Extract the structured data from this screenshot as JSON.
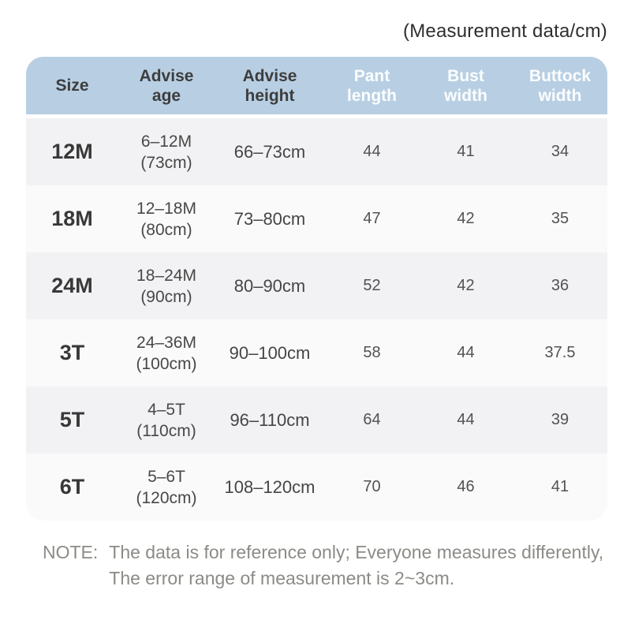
{
  "page": {
    "title": "(Measurement data/cm)"
  },
  "colors": {
    "header_bg": "#b8cfe3",
    "header_text_dark": "#3d3d3d",
    "header_text_light": "#fbfdfe",
    "row_gray": "#f2f2f4",
    "row_light": "#fafafa",
    "note_text": "#8b8b86"
  },
  "table": {
    "columns": [
      {
        "id": "size",
        "line1": "Size",
        "line2": ""
      },
      {
        "id": "advise_age",
        "line1": "Advise",
        "line2": "age"
      },
      {
        "id": "advise_height",
        "line1": "Advise",
        "line2": "height"
      },
      {
        "id": "pant_length",
        "line1": "Pant",
        "line2": "length"
      },
      {
        "id": "bust_width",
        "line1": "Bust",
        "line2": "width"
      },
      {
        "id": "buttock_width",
        "line1": "Buttock",
        "line2": "width"
      }
    ],
    "rows": [
      {
        "size": "12M",
        "age_line1": "6–12M",
        "age_line2": "(73cm)",
        "height": "66–73cm",
        "pant_length": "44",
        "bust_width": "41",
        "buttock_width": "34"
      },
      {
        "size": "18M",
        "age_line1": "12–18M",
        "age_line2": "(80cm)",
        "height": "73–80cm",
        "pant_length": "47",
        "bust_width": "42",
        "buttock_width": "35"
      },
      {
        "size": "24M",
        "age_line1": "18–24M",
        "age_line2": "(90cm)",
        "height": "80–90cm",
        "pant_length": "52",
        "bust_width": "42",
        "buttock_width": "36"
      },
      {
        "size": "3T",
        "age_line1": "24–36M",
        "age_line2": "(100cm)",
        "height": "90–100cm",
        "pant_length": "58",
        "bust_width": "44",
        "buttock_width": "37.5"
      },
      {
        "size": "5T",
        "age_line1": "4–5T",
        "age_line2": "(110cm)",
        "height": "96–110cm",
        "pant_length": "64",
        "bust_width": "44",
        "buttock_width": "39"
      },
      {
        "size": "6T",
        "age_line1": "5–6T",
        "age_line2": "(120cm)",
        "height": "108–120cm",
        "pant_length": "70",
        "bust_width": "46",
        "buttock_width": "41"
      }
    ]
  },
  "note": {
    "label": "NOTE:",
    "line1": "The data is for reference only;  Everyone measures differently,",
    "line2": "The error range of measurement is 2~3cm."
  },
  "chart_data": {
    "type": "table",
    "title": "(Measurement data/cm)",
    "columns": [
      "Size",
      "Advise age",
      "Advise height",
      "Pant length",
      "Bust width",
      "Buttock width"
    ],
    "rows": [
      [
        "12M",
        "6–12M (73cm)",
        "66–73cm",
        44,
        41,
        34
      ],
      [
        "18M",
        "12–18M (80cm)",
        "73–80cm",
        47,
        42,
        35
      ],
      [
        "24M",
        "18–24M (90cm)",
        "80–90cm",
        52,
        42,
        36
      ],
      [
        "3T",
        "24–36M (100cm)",
        "90–100cm",
        58,
        44,
        37.5
      ],
      [
        "5T",
        "4–5T (110cm)",
        "96–110cm",
        64,
        44,
        39
      ],
      [
        "6T",
        "5–6T (120cm)",
        "108–120cm",
        70,
        46,
        41
      ]
    ],
    "note": "NOTE: The data is for reference only; Everyone measures differently, The error range of measurement is 2~3cm."
  }
}
